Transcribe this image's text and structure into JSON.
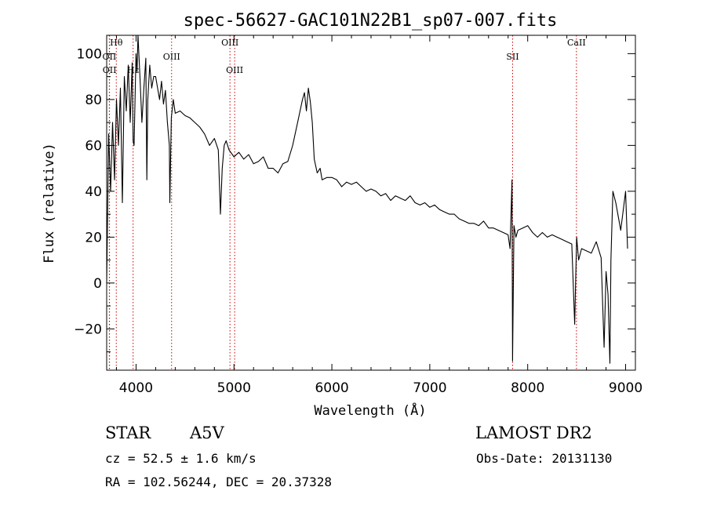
{
  "chart_data": {
    "type": "line",
    "title": "spec-56627-GAC101N22B1_sp07-007.fits",
    "xlabel": "Wavelength (Å)",
    "ylabel": "Flux (relative)",
    "xlim": [
      3700,
      9100
    ],
    "ylim": [
      -38,
      108
    ],
    "x_ticks": [
      4000,
      5000,
      6000,
      7000,
      8000,
      9000
    ],
    "y_ticks": [
      -20,
      0,
      20,
      40,
      60,
      80,
      100
    ],
    "grid": false,
    "series": [
      {
        "x": [
          3700,
          3720,
          3740,
          3760,
          3780,
          3800,
          3820,
          3840,
          3860,
          3880,
          3900,
          3920,
          3940,
          3960,
          3970,
          3980,
          4000,
          4010,
          4020,
          4040,
          4060,
          4080,
          4100,
          4110,
          4120,
          4140,
          4160,
          4180,
          4200,
          4220,
          4240,
          4260,
          4280,
          4300,
          4320,
          4340,
          4345,
          4360,
          4380,
          4400,
          4450,
          4500,
          4550,
          4600,
          4650,
          4700,
          4750,
          4800,
          4840,
          4862,
          4880,
          4900,
          4920,
          4950,
          5000,
          5050,
          5100,
          5150,
          5200,
          5250,
          5300,
          5350,
          5400,
          5450,
          5500,
          5550,
          5600,
          5650,
          5700,
          5720,
          5740,
          5760,
          5780,
          5800,
          5820,
          5850,
          5880,
          5900,
          5950,
          6000,
          6050,
          6100,
          6150,
          6200,
          6250,
          6300,
          6350,
          6400,
          6450,
          6500,
          6550,
          6600,
          6650,
          6700,
          6750,
          6800,
          6850,
          6900,
          6950,
          7000,
          7050,
          7100,
          7150,
          7200,
          7250,
          7300,
          7350,
          7400,
          7450,
          7500,
          7550,
          7600,
          7650,
          7700,
          7750,
          7800,
          7820,
          7840,
          7845,
          7860,
          7880,
          7900,
          7950,
          8000,
          8050,
          8100,
          8150,
          8200,
          8250,
          8300,
          8350,
          8400,
          8450,
          8480,
          8500,
          8520,
          8550,
          8600,
          8650,
          8700,
          8750,
          8780,
          8800,
          8820,
          8840,
          8850,
          8870,
          8900,
          8950,
          9000,
          9020
        ],
        "y": [
          0,
          65,
          40,
          70,
          45,
          80,
          60,
          85,
          35,
          90,
          75,
          95,
          70,
          96,
          62,
          60,
          100,
          92,
          108,
          90,
          70,
          85,
          98,
          45,
          80,
          95,
          85,
          90,
          90,
          85,
          80,
          88,
          78,
          84,
          70,
          60,
          35,
          72,
          80,
          74,
          75,
          73,
          72,
          70,
          68,
          65,
          60,
          63,
          58,
          30,
          50,
          60,
          62,
          58,
          55,
          57,
          54,
          56,
          52,
          53,
          55,
          50,
          50,
          48,
          52,
          53,
          60,
          70,
          80,
          83,
          75,
          85,
          79,
          70,
          54,
          48,
          50,
          45,
          46,
          46,
          45,
          42,
          44,
          43,
          44,
          42,
          40,
          41,
          40,
          38,
          39,
          36,
          38,
          37,
          36,
          38,
          35,
          34,
          35,
          33,
          34,
          32,
          31,
          30,
          30,
          28,
          27,
          26,
          26,
          25,
          27,
          24,
          24,
          23,
          22,
          21,
          15,
          45,
          -34,
          25,
          20,
          23,
          24,
          25,
          22,
          20,
          22,
          20,
          21,
          20,
          19,
          18,
          17,
          -18,
          20,
          10,
          15,
          14,
          13,
          18,
          11,
          -28,
          5,
          -5,
          -35,
          10,
          40,
          35,
          23,
          40,
          15
        ]
      }
    ],
    "annotations": [
      {
        "label": "Hθ",
        "x": 3798,
        "row": 0
      },
      {
        "label": "OII",
        "x": 3727,
        "row": 1
      },
      {
        "label": "OII",
        "x": 3729,
        "row": 2
      },
      {
        "label": "Hε",
        "x": 3970,
        "row": 2
      },
      {
        "label": "OIII",
        "x": 4363,
        "row": 1
      },
      {
        "label": "OIII",
        "x": 4959,
        "row": 0
      },
      {
        "label": "OIII",
        "x": 5007,
        "row": 2
      },
      {
        "label": "SII",
        "x": 7846,
        "row": 1
      },
      {
        "label": "CaII",
        "x": 8498,
        "row": 0
      }
    ]
  },
  "info": {
    "object_class": "STAR",
    "subclass": "A5V",
    "survey": "LAMOST DR2",
    "redshift_text": "cz = 52.5 ± 1.6 km/s",
    "obs_date_text": "Obs-Date: 20131130",
    "coords_text": "RA = 102.56244, DEC =  20.37328"
  },
  "colors": {
    "spectrum": "#000000",
    "line_markers": "#cc0000",
    "axes": "#000000",
    "background": "#ffffff"
  }
}
